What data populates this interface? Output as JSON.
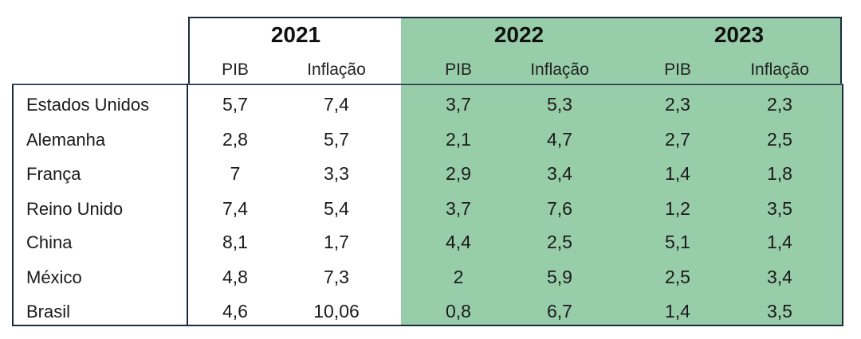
{
  "years": [
    "2021",
    "2022",
    "2023"
  ],
  "subheaders": [
    "PIB",
    "Inflação",
    "PIB",
    "Inflação",
    "PIB",
    "Inflação"
  ],
  "rows": [
    {
      "country": "Estados Unidos",
      "values": [
        "5,7",
        "7,4",
        "3,7",
        "5,3",
        "2,3",
        "2,3"
      ]
    },
    {
      "country": "Alemanha",
      "values": [
        "2,8",
        "5,7",
        "2,1",
        "4,7",
        "2,7",
        "2,5"
      ]
    },
    {
      "country": "França",
      "values": [
        "7",
        "3,3",
        "2,9",
        "3,4",
        "1,4",
        "1,8"
      ]
    },
    {
      "country": "Reino Unido",
      "values": [
        "7,4",
        "5,4",
        "3,7",
        "7,6",
        "1,2",
        "3,5"
      ]
    },
    {
      "country": "China",
      "values": [
        "8,1",
        "1,7",
        "4,4",
        "2,5",
        "5,1",
        "1,4"
      ]
    },
    {
      "country": "México",
      "values": [
        "4,8",
        "7,3",
        "2",
        "5,9",
        "2,5",
        "3,4"
      ]
    },
    {
      "country": "Brasil",
      "values": [
        "4,6",
        "10,06",
        "0,8",
        "6,7",
        "1,4",
        "3,5"
      ]
    }
  ],
  "colors": {
    "shade": "#98cdaa",
    "border": "#1c2b3a"
  }
}
